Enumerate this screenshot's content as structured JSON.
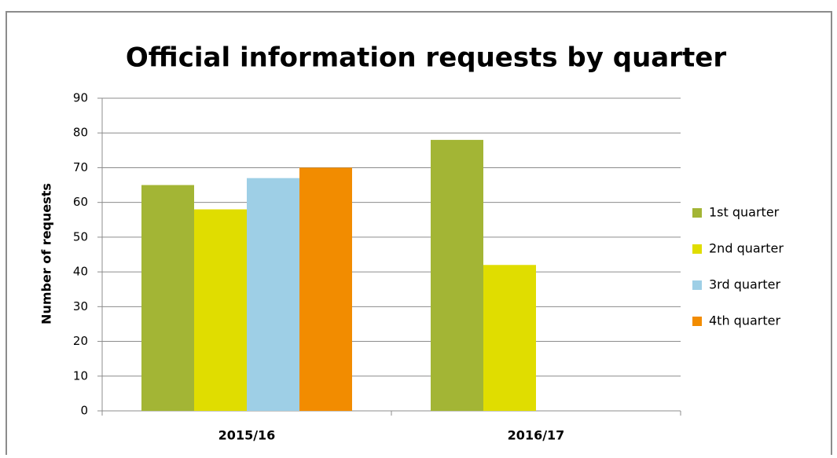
{
  "chart_data": {
    "type": "bar",
    "title": "Official information requests by quarter",
    "y_label": "Number of requests",
    "categories": [
      "2015/16",
      "2016/17"
    ],
    "series": [
      {
        "name": "1st quarter",
        "color": "#a3b535",
        "values": [
          65,
          78
        ]
      },
      {
        "name": "2nd quarter",
        "color": "#e0dd00",
        "values": [
          58,
          42
        ]
      },
      {
        "name": "3rd quarter",
        "color": "#9ecfe6",
        "values": [
          67,
          null
        ]
      },
      {
        "name": "4th quarter",
        "color": "#f28c00",
        "values": [
          70,
          null
        ]
      }
    ],
    "ylim": [
      0,
      90
    ],
    "yticks": [
      0,
      10,
      20,
      30,
      40,
      50,
      60,
      70,
      80,
      90
    ],
    "grid": true,
    "legend": "right"
  }
}
